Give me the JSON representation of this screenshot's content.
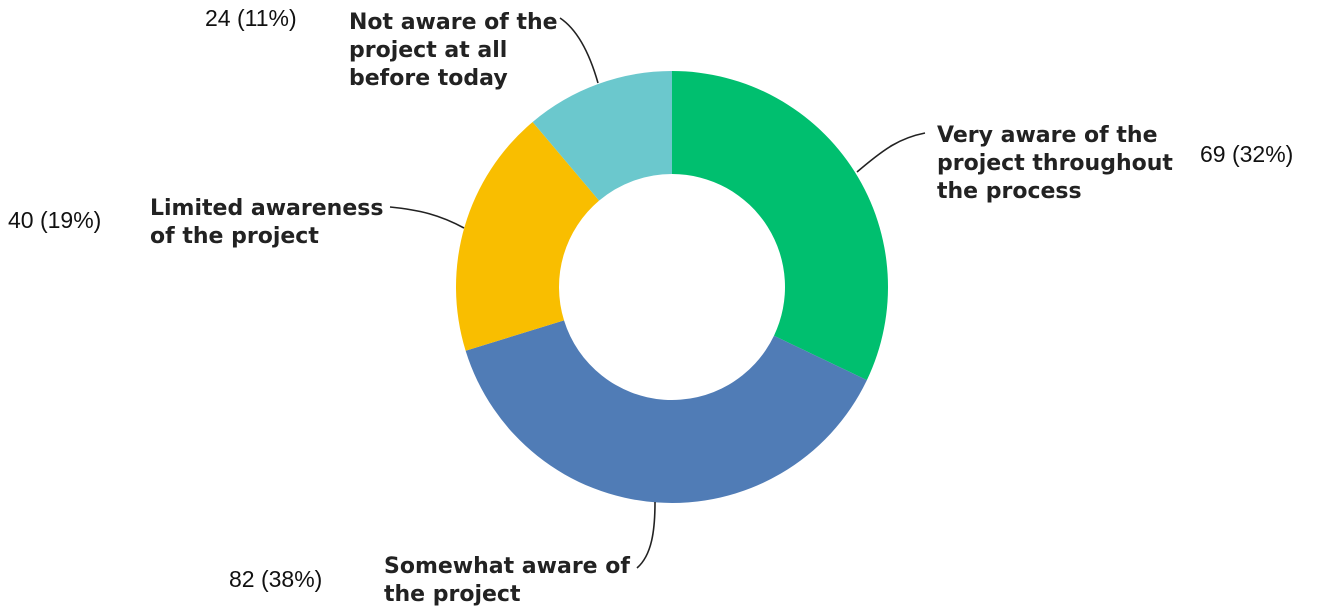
{
  "chart_data": {
    "type": "pie",
    "donut": true,
    "slices": [
      {
        "label": [
          "Very aware of the",
          "project throughout",
          "the process"
        ],
        "value": 69,
        "percent": 32,
        "value_label": "69 (32%)",
        "color": "#00BF6F"
      },
      {
        "label": [
          "Somewhat aware of",
          "the project"
        ],
        "value": 82,
        "percent": 38,
        "value_label": "82 (38%)",
        "color": "#507CB6"
      },
      {
        "label": [
          "Limited awareness",
          "of the project"
        ],
        "value": 40,
        "percent": 19,
        "value_label": "40 (19%)",
        "color": "#F9BE00"
      },
      {
        "label": [
          "Not aware of the",
          "project at all",
          "before today"
        ],
        "value": 24,
        "percent": 11,
        "value_label": "24 (11%)",
        "color": "#6BC8CD"
      }
    ]
  }
}
